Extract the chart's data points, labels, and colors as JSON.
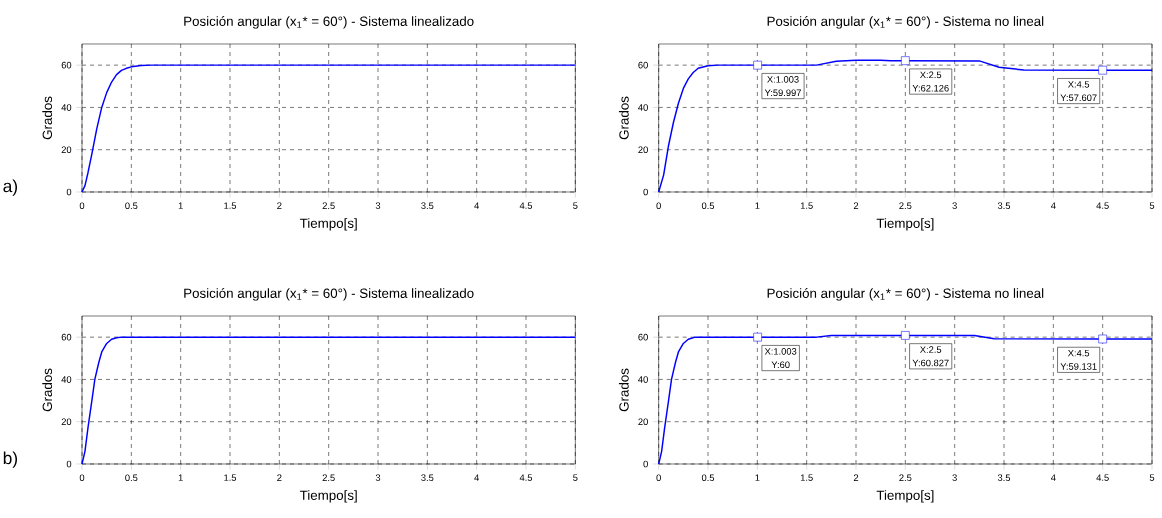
{
  "chart_data": [
    {
      "type": "line",
      "title": "Posición angular (x$_{1}$* = 60°) - Sistema linealizado",
      "xlabel": "Tiempo[s]",
      "ylabel": "Grados",
      "x": [
        0,
        0.03,
        0.06,
        0.1,
        0.15,
        0.2,
        0.25,
        0.3,
        0.35,
        0.4,
        0.45,
        0.5,
        0.6,
        0.7,
        5
      ],
      "series": [
        {
          "color": "#0000ff",
          "values": [
            0,
            3,
            9,
            18,
            30,
            40,
            47,
            52,
            55.5,
            57.5,
            58.5,
            59.2,
            59.8,
            60,
            60
          ]
        }
      ],
      "xlim": [
        0,
        5
      ],
      "ylim": [
        0,
        70
      ],
      "xticks": [
        0,
        0.5,
        1,
        1.5,
        2,
        2.5,
        3,
        3.5,
        4,
        4.5,
        5
      ],
      "yticks": [
        0,
        20,
        40,
        60
      ],
      "grid": true,
      "annotations": [
        "a)"
      ]
    },
    {
      "type": "line",
      "title": "Posición angular (x$_{1}$* = 60°) - Sistema no lineal",
      "xlabel": "Tiempo[s]",
      "ylabel": "Grados",
      "x": [
        0,
        0.05,
        0.1,
        0.15,
        0.2,
        0.25,
        0.3,
        0.35,
        0.4,
        0.5,
        0.6,
        1.003,
        1.6,
        1.8,
        2.0,
        2.25,
        2.35,
        2.5,
        3.25,
        3.45,
        3.7,
        4.5,
        5
      ],
      "series": [
        {
          "color": "#0000ff",
          "values": [
            0,
            8,
            22,
            33,
            42,
            49,
            53.5,
            56.5,
            58.5,
            59.7,
            60,
            60,
            60,
            61.8,
            62.3,
            62.3,
            62.1,
            62.1,
            62,
            59,
            57.7,
            57.6,
            57.6
          ]
        }
      ],
      "xlim": [
        0,
        5
      ],
      "ylim": [
        0,
        70
      ],
      "xticks": [
        0,
        0.5,
        1,
        1.5,
        2,
        2.5,
        3,
        3.5,
        4,
        4.5,
        5
      ],
      "yticks": [
        0,
        20,
        40,
        60
      ],
      "grid": true,
      "annotations": [
        {
          "text": "X:1.003",
          "x": 1.003,
          "y": 59.997
        },
        {
          "text": "Y:59.997",
          "x": 1.003,
          "y": 59.997
        },
        {
          "text": "X:2.5",
          "x": 2.5,
          "y": 62.126
        },
        {
          "text": "Y:62.126",
          "x": 2.5,
          "y": 62.126
        },
        {
          "text": "X:4.5",
          "x": 4.5,
          "y": 57.607
        },
        {
          "text": "Y:57.607",
          "x": 4.5,
          "y": 57.607
        }
      ]
    },
    {
      "type": "line",
      "title": "Posición angular (x$_{1}$* = 60°) - Sistema linealizado",
      "xlabel": "Tiempo[s]",
      "ylabel": "Grados",
      "x": [
        0,
        0.03,
        0.06,
        0.1,
        0.13,
        0.17,
        0.2,
        0.25,
        0.3,
        0.35,
        0.4,
        5
      ],
      "series": [
        {
          "color": "#0000ff",
          "values": [
            0,
            6,
            17,
            30,
            40,
            48,
            53,
            57,
            59,
            59.7,
            60,
            60
          ]
        }
      ],
      "xlim": [
        0,
        5
      ],
      "ylim": [
        0,
        70
      ],
      "xticks": [
        0,
        0.5,
        1,
        1.5,
        2,
        2.5,
        3,
        3.5,
        4,
        4.5,
        5
      ],
      "yticks": [
        0,
        20,
        40,
        60
      ],
      "grid": true,
      "annotations": [
        "b)"
      ]
    },
    {
      "type": "line",
      "title": "Posición angular (x$_{1}$* = 60°) - Sistema no lineal",
      "xlabel": "Tiempo[s]",
      "ylabel": "Grados",
      "x": [
        0,
        0.03,
        0.06,
        0.1,
        0.13,
        0.17,
        0.2,
        0.25,
        0.3,
        0.37,
        1.003,
        1.6,
        1.75,
        2.5,
        3.2,
        3.4,
        4.5,
        5
      ],
      "series": [
        {
          "color": "#0000ff",
          "values": [
            0,
            6,
            17,
            30,
            40,
            48,
            53,
            57,
            59,
            60,
            60,
            60,
            60.8,
            60.8,
            60.8,
            59.2,
            59.1,
            59.1
          ]
        }
      ],
      "xlim": [
        0,
        5
      ],
      "ylim": [
        0,
        70
      ],
      "xticks": [
        0,
        0.5,
        1,
        1.5,
        2,
        2.5,
        3,
        3.5,
        4,
        4.5,
        5
      ],
      "yticks": [
        0,
        20,
        40,
        60
      ],
      "grid": true,
      "annotations": [
        {
          "text": "X:1.003",
          "x": 1.003,
          "y": 60
        },
        {
          "text": "Y:60",
          "x": 1.003,
          "y": 60
        },
        {
          "text": "X:2.5",
          "x": 2.5,
          "y": 60.827
        },
        {
          "text": "Y:60.827",
          "x": 2.5,
          "y": 60.827
        },
        {
          "text": "X:4.5",
          "x": 4.5,
          "y": 59.131
        },
        {
          "text": "Y:59.131",
          "x": 4.5,
          "y": 59.131
        }
      ]
    }
  ]
}
